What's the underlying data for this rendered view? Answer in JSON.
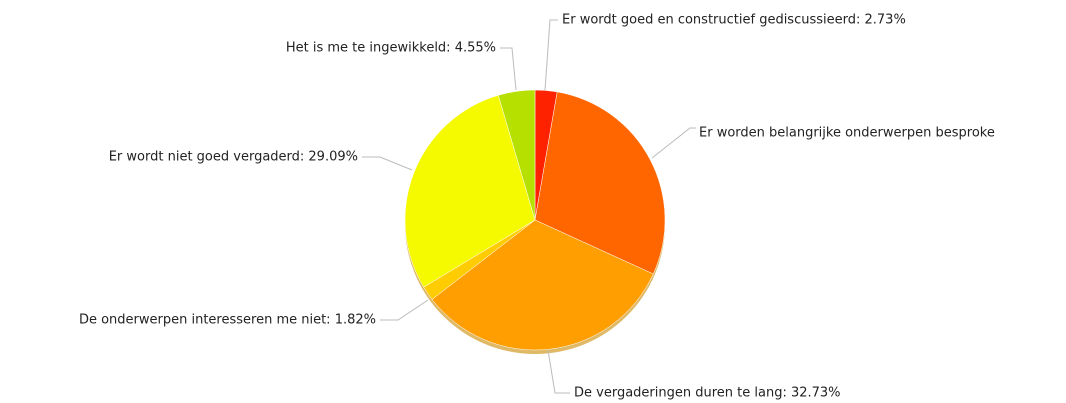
{
  "chart_data": {
    "type": "pie",
    "categories": [
      "Er wordt goed en constructief gediscussieerd: 2.73%",
      "Er worden belangrijke onderwerpen besproke",
      "De vergaderingen duren te lang: 32.73%",
      "De onderwerpen interesseren me niet: 1.82%",
      "Er wordt niet goed vergaderd: 29.09%",
      "Het is me te ingewikkeld: 4.55%"
    ],
    "values": [
      2.73,
      29.09,
      32.73,
      1.82,
      29.09,
      4.55
    ],
    "colors": [
      "#ff2200",
      "#ff6600",
      "#ff9e00",
      "#ffcc00",
      "#f5fa00",
      "#b5e000"
    ]
  }
}
